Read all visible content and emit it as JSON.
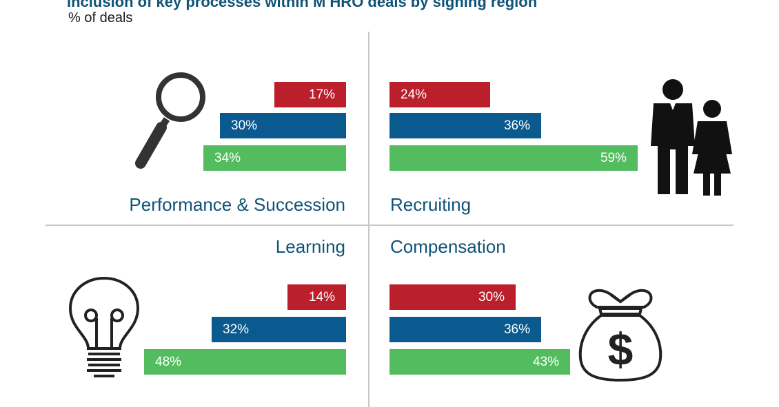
{
  "chart_data": {
    "type": "bar",
    "title": "Inclusion of key processes within M HRO deals by signing region",
    "subtitle": "% of deals",
    "colors": {
      "red": "#bb1f2c",
      "blue": "#0b5a8f",
      "green": "#53bc5f",
      "text_blue": "#0f5378"
    },
    "panels": [
      {
        "label": "Performance & Succession",
        "icon": "magnifier-icon",
        "values": [
          17,
          30,
          34
        ],
        "value_labels": [
          "17%",
          "30%",
          "34%"
        ]
      },
      {
        "label": "Recruiting",
        "icon": "people-icon",
        "values": [
          24,
          36,
          59
        ],
        "value_labels": [
          "24%",
          "36%",
          "59%"
        ]
      },
      {
        "label": "Learning",
        "icon": "lightbulb-icon",
        "values": [
          14,
          32,
          48
        ],
        "value_labels": [
          "14%",
          "32%",
          "48%"
        ]
      },
      {
        "label": "Compensation",
        "icon": "money-bag-icon",
        "values": [
          30,
          36,
          43
        ],
        "value_labels": [
          "30%",
          "36%",
          "43%"
        ]
      }
    ]
  }
}
